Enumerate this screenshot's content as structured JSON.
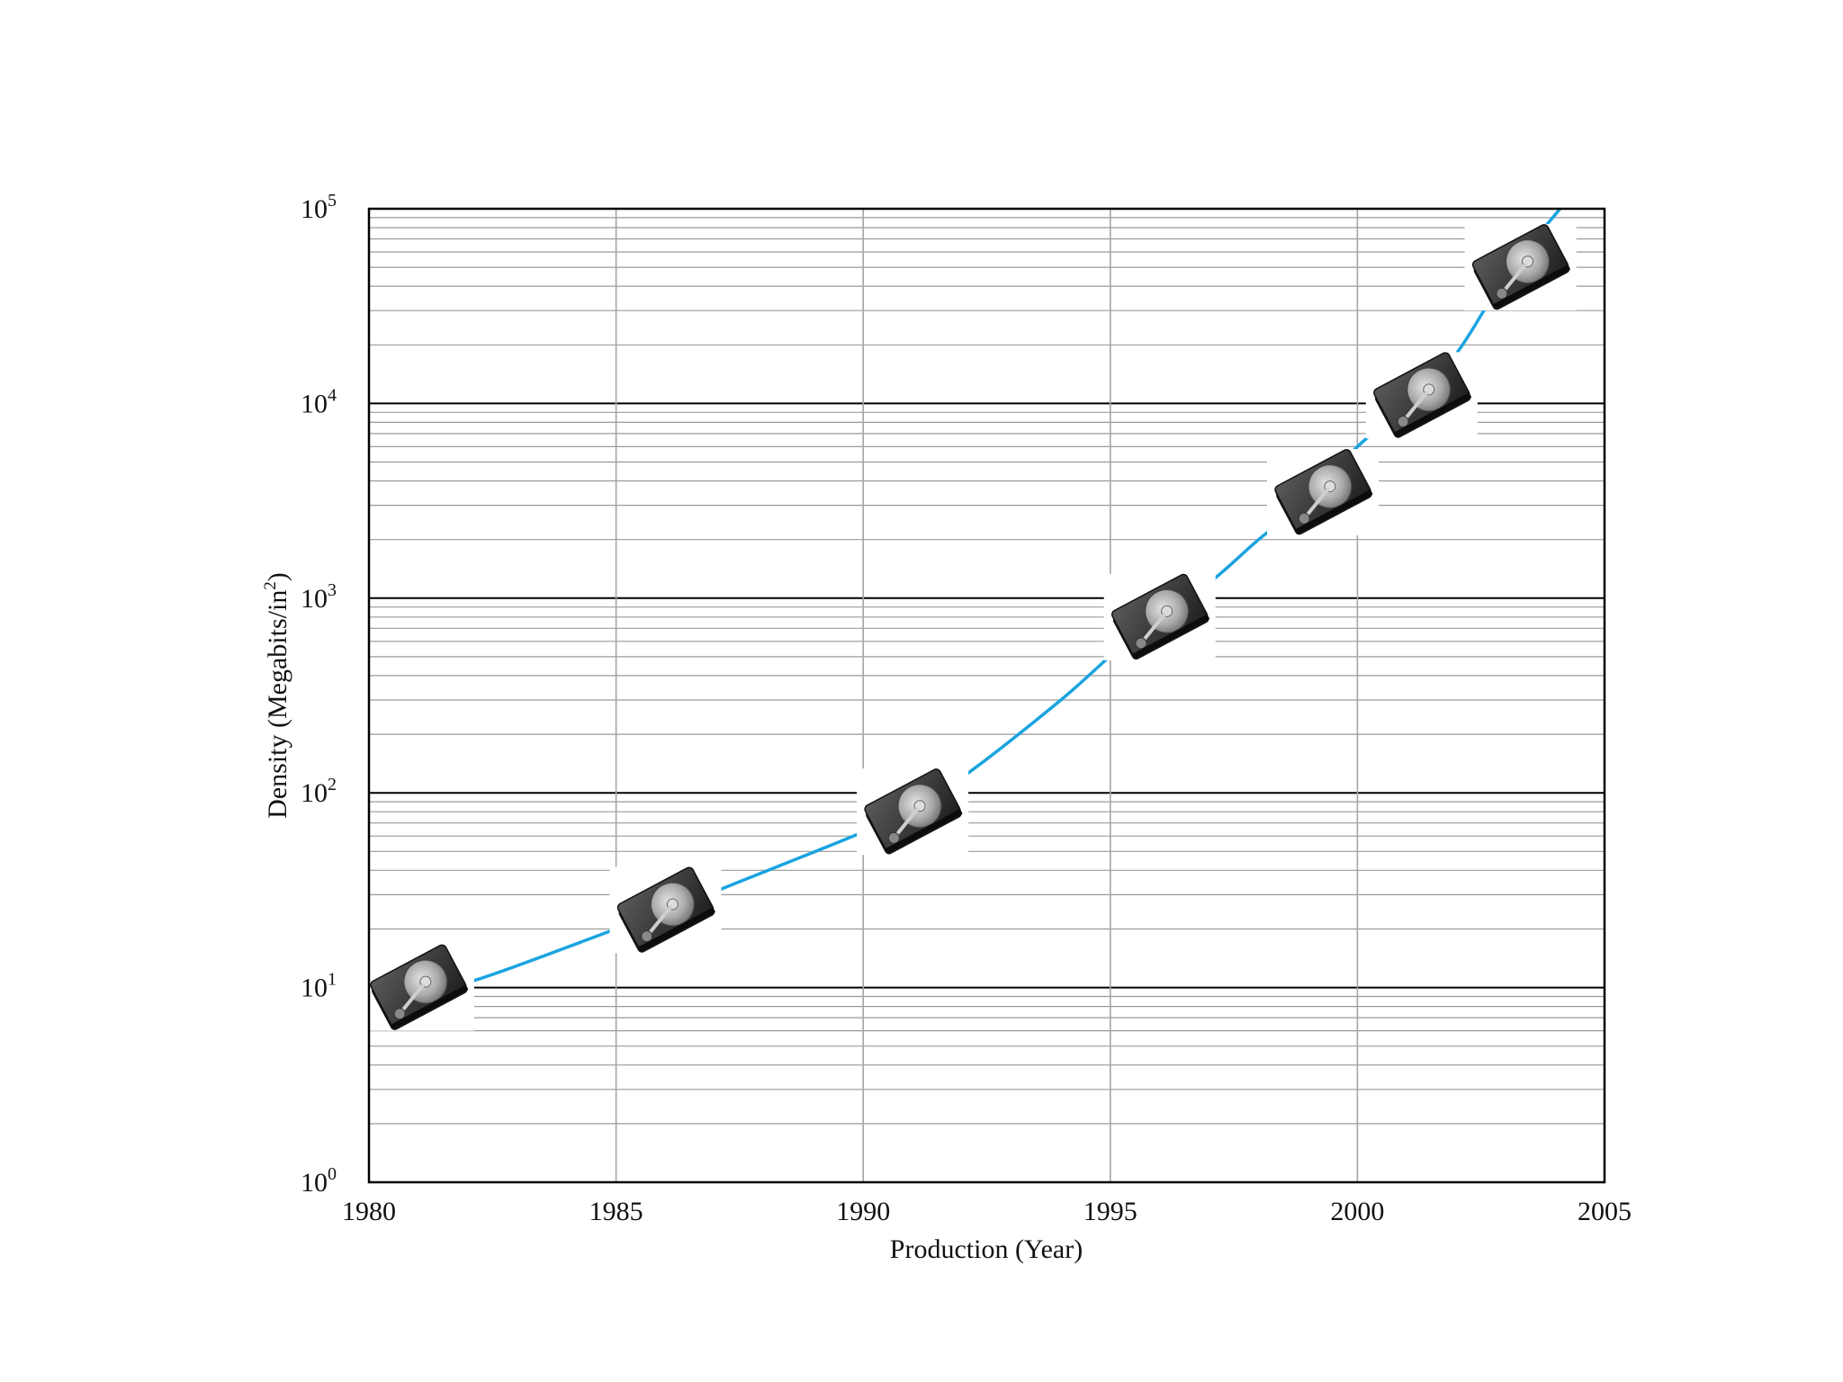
{
  "chart_data": {
    "type": "line",
    "title": "",
    "xlabel": "Production (Year)",
    "ylabel_main": "Density (Megabits/in",
    "ylabel_sup": "2",
    "ylabel_end": ")",
    "xlim": [
      1980,
      2005
    ],
    "ylim": [
      1,
      100000
    ],
    "yscale": "log",
    "grid": true,
    "x_ticks": [
      "1980",
      "1985",
      "1990",
      "1995",
      "2000",
      "2005"
    ],
    "y_ticks": [
      {
        "base": "10",
        "exp": "0"
      },
      {
        "base": "10",
        "exp": "1"
      },
      {
        "base": "10",
        "exp": "2"
      },
      {
        "base": "10",
        "exp": "3"
      },
      {
        "base": "10",
        "exp": "4"
      },
      {
        "base": "10",
        "exp": "5"
      }
    ],
    "series": [
      {
        "color": "#1aa3e0",
        "points": [
          [
            1980.7,
            9
          ],
          [
            1982.2,
            11
          ],
          [
            1985,
            20
          ],
          [
            1986.4,
            27
          ],
          [
            1987.5,
            35
          ],
          [
            1990,
            63
          ],
          [
            1990.8,
            80
          ],
          [
            1992,
            120
          ],
          [
            1994,
            300
          ],
          [
            1995.5,
            650
          ],
          [
            1997,
            1200
          ],
          [
            1998,
            2000
          ],
          [
            1999,
            3200
          ],
          [
            2000,
            6000
          ],
          [
            2001,
            9800
          ],
          [
            2002,
            18000
          ],
          [
            2003,
            45000
          ],
          [
            2004.1,
            100000
          ]
        ]
      }
    ],
    "markers": {
      "icon": "hard-drive-icon",
      "points": [
        [
          1981,
          10
        ],
        [
          1986,
          25
        ],
        [
          1991,
          80
        ],
        [
          1996,
          800
        ],
        [
          1999.3,
          3500
        ],
        [
          2001.3,
          11000
        ],
        [
          2003.3,
          50000
        ]
      ]
    }
  }
}
